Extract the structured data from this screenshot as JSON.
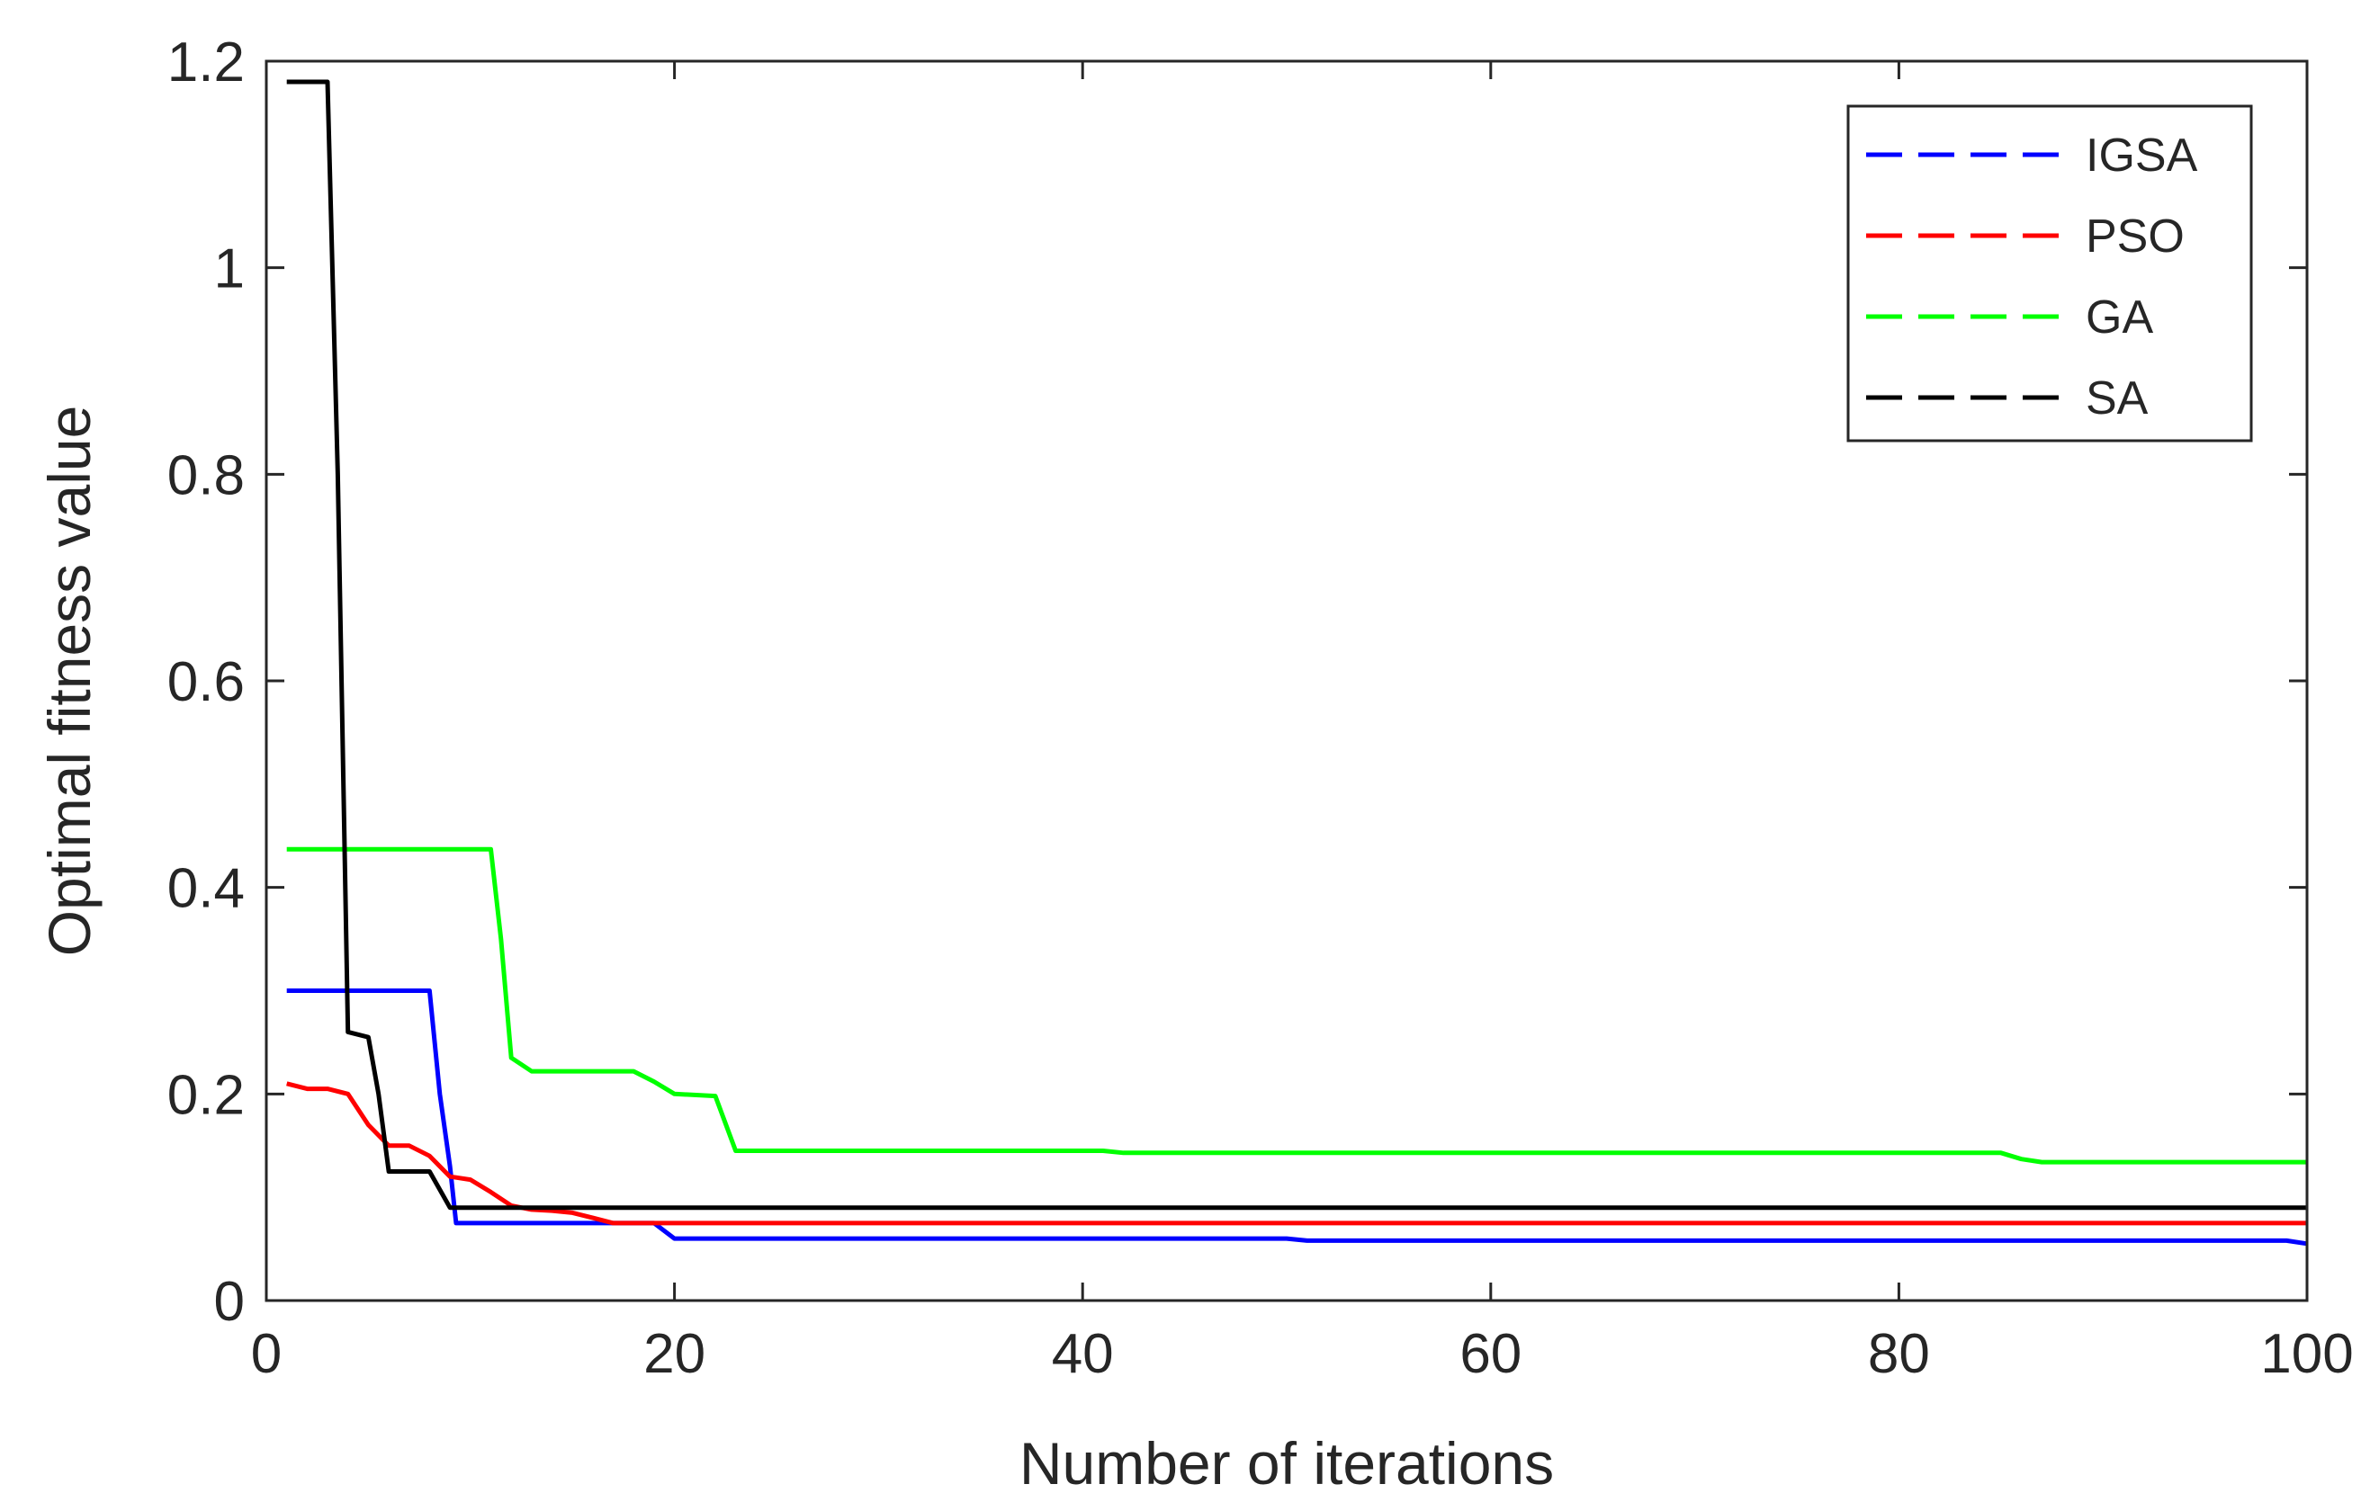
{
  "chart_data": {
    "type": "line",
    "title": "",
    "xlabel": "Number of iterations",
    "ylabel": "Optimal fitness value",
    "xlim": [
      0,
      100
    ],
    "ylim": [
      0,
      1.2
    ],
    "xticks": [
      "0",
      "20",
      "40",
      "60",
      "80",
      "100"
    ],
    "yticks": [
      "0",
      "0.2",
      "0.4",
      "0.6",
      "0.8",
      "1",
      "1.2"
    ],
    "grid": false,
    "legend_position": "top-right",
    "series": [
      {
        "name": "IGSA",
        "color": "#0000ff",
        "points": [
          [
            1,
            0.3
          ],
          [
            8,
            0.3
          ],
          [
            8.5,
            0.2
          ],
          [
            9,
            0.13
          ],
          [
            9.3,
            0.075
          ],
          [
            19,
            0.075
          ],
          [
            20,
            0.06
          ],
          [
            50,
            0.06
          ],
          [
            51,
            0.058
          ],
          [
            99,
            0.058
          ],
          [
            100,
            0.055
          ]
        ]
      },
      {
        "name": "PSO",
        "color": "#ff0000",
        "points": [
          [
            1,
            0.21
          ],
          [
            2,
            0.205
          ],
          [
            3,
            0.205
          ],
          [
            4,
            0.2
          ],
          [
            5,
            0.17
          ],
          [
            6,
            0.15
          ],
          [
            7,
            0.15
          ],
          [
            8,
            0.14
          ],
          [
            9,
            0.12
          ],
          [
            10,
            0.117
          ],
          [
            11,
            0.105
          ],
          [
            12,
            0.092
          ],
          [
            13,
            0.088
          ],
          [
            14,
            0.087
          ],
          [
            15,
            0.085
          ],
          [
            16,
            0.08
          ],
          [
            17,
            0.075
          ],
          [
            18,
            0.075
          ],
          [
            20,
            0.075
          ],
          [
            100,
            0.075
          ]
        ]
      },
      {
        "name": "GA",
        "color": "#00ff00",
        "points": [
          [
            1,
            0.437
          ],
          [
            11,
            0.437
          ],
          [
            11.5,
            0.35
          ],
          [
            12,
            0.235
          ],
          [
            13,
            0.222
          ],
          [
            18,
            0.222
          ],
          [
            19,
            0.212
          ],
          [
            20,
            0.2
          ],
          [
            22,
            0.198
          ],
          [
            23,
            0.145
          ],
          [
            41,
            0.145
          ],
          [
            42,
            0.143
          ],
          [
            85,
            0.143
          ],
          [
            86,
            0.137
          ],
          [
            87,
            0.134
          ],
          [
            100,
            0.134
          ]
        ]
      },
      {
        "name": "SA",
        "color": "#000000",
        "points": [
          [
            1,
            1.18
          ],
          [
            3,
            1.18
          ],
          [
            3.5,
            0.8
          ],
          [
            4,
            0.26
          ],
          [
            5,
            0.255
          ],
          [
            5.5,
            0.2
          ],
          [
            6,
            0.125
          ],
          [
            8,
            0.125
          ],
          [
            9,
            0.09
          ],
          [
            100,
            0.09
          ]
        ]
      }
    ]
  }
}
